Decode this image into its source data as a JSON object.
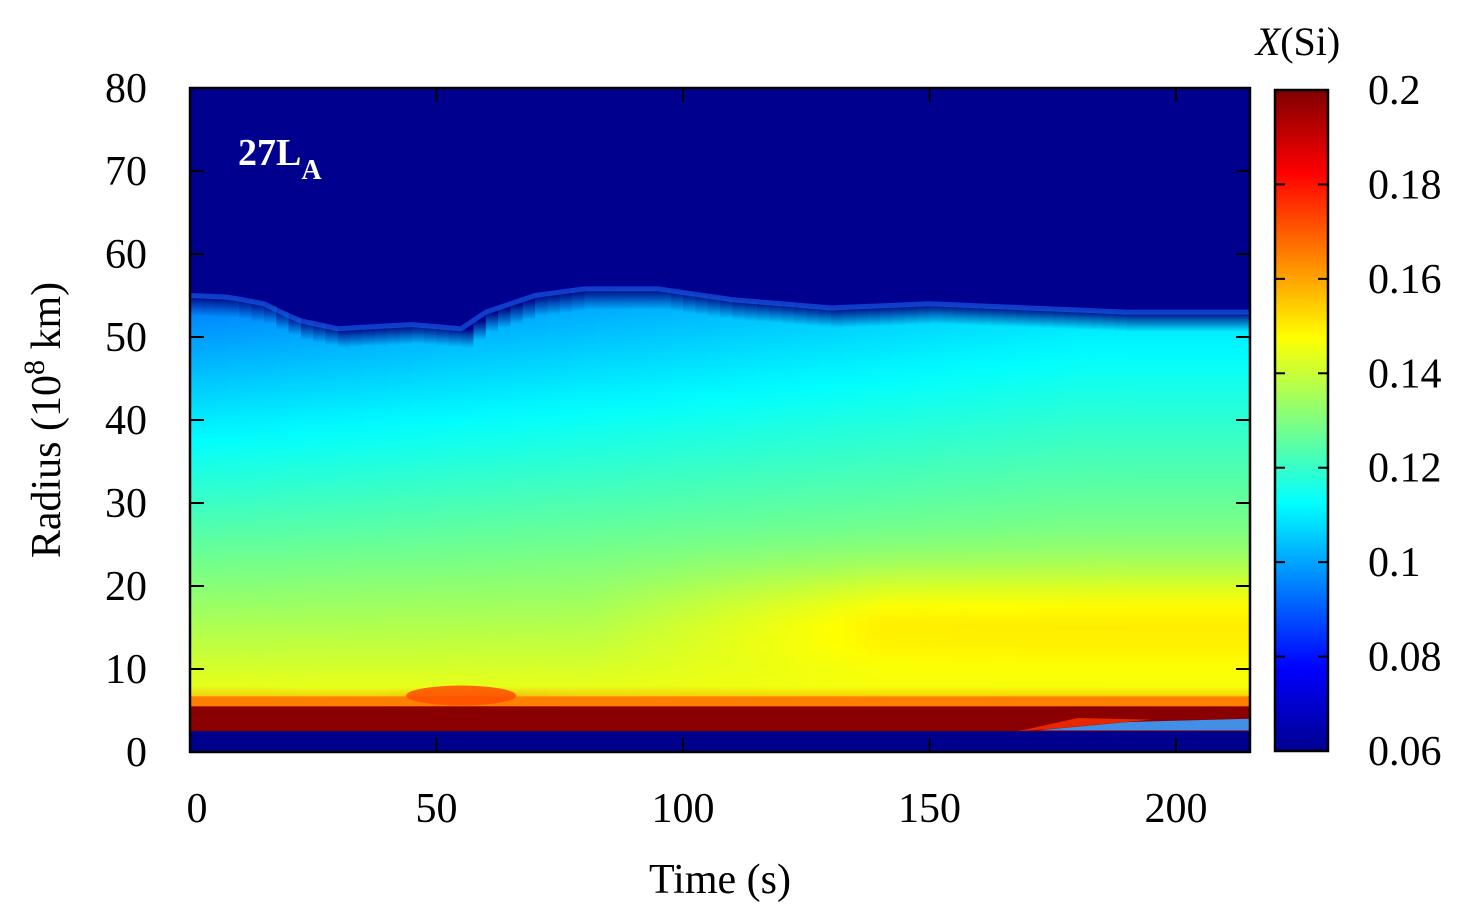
{
  "chart_data": {
    "type": "heatmap",
    "panel_label": "27L",
    "panel_label_sub": "A",
    "xlabel": "Time (s)",
    "ylabel_main": "Radius (10",
    "ylabel_sup": "8",
    "ylabel_tail": " km)",
    "xlim": [
      0,
      215
    ],
    "ylim": [
      0,
      80
    ],
    "xticks": [
      0,
      50,
      100,
      150,
      200
    ],
    "yticks": [
      0,
      10,
      20,
      30,
      40,
      50,
      60,
      70,
      80
    ],
    "colorbar": {
      "label_italic": "X",
      "label_rest": "(Si)",
      "range": [
        0.06,
        0.2
      ],
      "ticks": [
        "0.06",
        "0.08",
        "0.1",
        "0.12",
        "0.14",
        "0.16",
        "0.18",
        "0.2"
      ],
      "colormap": "jet"
    },
    "outer_boundary_radius": {
      "t": [
        0,
        8,
        15,
        22,
        30,
        45,
        55,
        60,
        70,
        80,
        95,
        110,
        130,
        150,
        170,
        190,
        215
      ],
      "r": [
        55,
        54.8,
        54,
        52,
        51,
        51.5,
        51,
        53,
        55,
        55.8,
        55.8,
        54.5,
        53.5,
        54,
        53.5,
        53,
        53
      ]
    },
    "inner_region": {
      "inner_edge_radius": 2.2,
      "hot_layer_radius": [
        2.5,
        5.5
      ],
      "upper_hot_shell_peak_t": 55
    }
  }
}
